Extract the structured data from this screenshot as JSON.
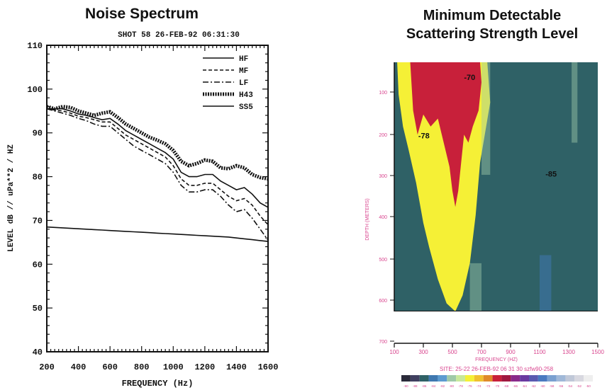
{
  "chart_data": [
    {
      "type": "line",
      "title": "Noise Spectrum",
      "subtitle": "SHOT 58   26-FEB-92 06:31:30",
      "xlabel": "FREQUENCY (Hz)",
      "ylabel": "LEVEL dB // uPa**2 / HZ",
      "xlim": [
        200,
        1600
      ],
      "ylim": [
        40,
        110
      ],
      "xticks": [
        "200",
        "400",
        "600",
        "800",
        "1000",
        "1200",
        "1400",
        "1600"
      ],
      "yticks": [
        "40",
        "50",
        "60",
        "70",
        "80",
        "90",
        "100",
        "110"
      ],
      "legend_position": "top-right",
      "x": [
        200,
        250,
        300,
        350,
        400,
        450,
        500,
        550,
        600,
        650,
        700,
        750,
        800,
        850,
        900,
        950,
        1000,
        1050,
        1100,
        1150,
        1200,
        1250,
        1300,
        1350,
        1400,
        1450,
        1500,
        1550,
        1600
      ],
      "series": [
        {
          "name": "HF",
          "style": "solid",
          "color": "#111111",
          "values": [
            95.5,
            95.5,
            95.5,
            95,
            94.3,
            94,
            93.5,
            93,
            93.3,
            92,
            90.5,
            89.5,
            88.5,
            87.5,
            86.5,
            85.5,
            84,
            81,
            80,
            80,
            80.5,
            80.5,
            79,
            78,
            77,
            77.5,
            76,
            74,
            73
          ]
        },
        {
          "name": "MF",
          "style": "dashed",
          "color": "#111111",
          "values": [
            95.5,
            95.2,
            95,
            94.5,
            93.8,
            93.5,
            93,
            92.5,
            92.5,
            91,
            89.5,
            88.5,
            87.5,
            86.5,
            85.5,
            84.5,
            82.5,
            79.5,
            78,
            78,
            78.5,
            78.5,
            77,
            75.5,
            74.5,
            75,
            73.5,
            71,
            69
          ]
        },
        {
          "name": "LF",
          "style": "dashdot",
          "color": "#111111",
          "values": [
            95.5,
            95,
            94.5,
            94,
            93.3,
            92.8,
            92,
            91.5,
            91.5,
            90,
            88.5,
            87,
            86,
            85,
            84,
            83,
            81,
            78,
            76.5,
            76.5,
            77,
            77,
            75.5,
            73.5,
            72,
            72.5,
            70.5,
            68,
            65.5
          ]
        },
        {
          "name": "H43",
          "style": "thick",
          "color": "#111111",
          "values": [
            96,
            95.5,
            96,
            95.8,
            95,
            94.5,
            94,
            94.5,
            94.8,
            93.5,
            92,
            91,
            90,
            89,
            88.3,
            87.5,
            86,
            83.5,
            82.5,
            83,
            83.8,
            83.5,
            82,
            81.8,
            82.5,
            82,
            80.5,
            79.8,
            79.5
          ]
        },
        {
          "name": "SS5",
          "style": "solid",
          "color": "#111111",
          "values": [
            68.5,
            68.4,
            68.3,
            68.2,
            68.1,
            68,
            67.9,
            67.8,
            67.7,
            67.6,
            67.5,
            67.4,
            67.3,
            67.2,
            67.1,
            67,
            66.9,
            66.8,
            66.7,
            66.6,
            66.5,
            66.4,
            66.3,
            66.2,
            66,
            65.8,
            65.6,
            65.4,
            65.2
          ]
        }
      ]
    },
    {
      "type": "heatmap",
      "title": "Minimum Detectable Scattering Strength Level",
      "xlabel": "FREQUENCY (HZ)",
      "ylabel": "DEPTH (METERS)",
      "xlim": [
        100,
        1500
      ],
      "ylim": [
        700,
        0
      ],
      "xticks": [
        "100",
        "300",
        "500",
        "700",
        "900",
        "1100",
        "1300",
        "1500"
      ],
      "yticks": [
        "100",
        "200",
        "300",
        "400",
        "500",
        "600",
        "700"
      ],
      "footer": "SITE: 25-22    26-FEB-92 06 31 30      szfw90-258",
      "colorbar_labels": [
        "-90",
        "-88",
        "-86",
        "-84",
        "-82",
        "-80",
        "-78",
        "-76",
        "-74",
        "-72",
        "-70",
        "-68",
        "-66",
        "-64",
        "-62",
        "-60",
        "-58",
        "-56",
        "-54",
        "-52",
        "-50"
      ],
      "region_labels": [
        {
          "text": "-70",
          "freq": 580,
          "depth": 30,
          "color": "#111111"
        },
        {
          "text": "-78",
          "freq": 265,
          "depth": 175,
          "color": "#111111"
        },
        {
          "text": "-85",
          "freq": 1140,
          "depth": 270,
          "color": "#111111"
        }
      ],
      "colors": {
        "deep": "#2f6166",
        "mid": "#f5f036",
        "high": "#c8203a",
        "light": "#9fc9a8",
        "blue": "#3f78b0"
      },
      "regions": [
        {
          "level": "mid",
          "boundary_freq": [
            120,
            130,
            160,
            200,
            260,
            330,
            400,
            460,
            520,
            560,
            600,
            630,
            660,
            690,
            710,
            720,
            740,
            760,
            690,
            660,
            620,
            570,
            520,
            460,
            400,
            340,
            300,
            250,
            200,
            160,
            130,
            120
          ],
          "boundary_depth": [
            0,
            0,
            0,
            0,
            0,
            0,
            0,
            0,
            0,
            0,
            0,
            0,
            0,
            0,
            0,
            0,
            0,
            100,
            250,
            380,
            500,
            580,
            620,
            600,
            540,
            460,
            400,
            300,
            220,
            160,
            80,
            0
          ]
        },
        {
          "level": "high",
          "boundary_freq": [
            210,
            300,
            310,
            330,
            360,
            420,
            460,
            480,
            500,
            520,
            540,
            560,
            580,
            600,
            640,
            670,
            690,
            700,
            680,
            640,
            610,
            580,
            560,
            540,
            520,
            500,
            480,
            440,
            400,
            350,
            300,
            260,
            230,
            210
          ],
          "boundary_depth": [
            0,
            0,
            0,
            0,
            0,
            0,
            0,
            0,
            0,
            0,
            0,
            0,
            0,
            0,
            0,
            0,
            0,
            50,
            120,
            160,
            200,
            180,
            250,
            320,
            360,
            320,
            260,
            200,
            140,
            160,
            130,
            180,
            120,
            0
          ]
        }
      ]
    }
  ]
}
